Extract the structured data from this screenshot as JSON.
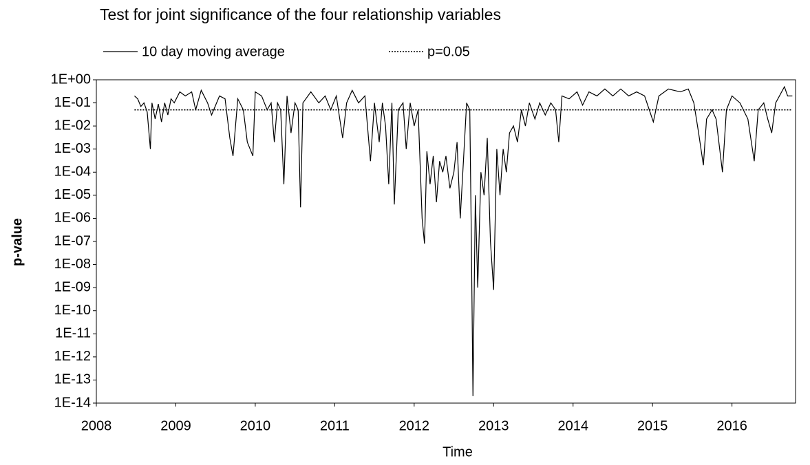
{
  "chart_data": {
    "type": "line",
    "title": "Test for joint significance of the four relationship variables",
    "x_label": "Time",
    "y_label": "p-value",
    "log_scale_y": true,
    "grid": false,
    "xlim": [
      2008,
      2016.8
    ],
    "xticks": [
      2008,
      2009,
      2010,
      2011,
      2012,
      2013,
      2014,
      2015,
      2016
    ],
    "ylim": [
      1e-14,
      1
    ],
    "yticks": [
      {
        "value": 1,
        "label": "1E+00"
      },
      {
        "value": 0.1,
        "label": "1E-01"
      },
      {
        "value": 0.01,
        "label": "1E-02"
      },
      {
        "value": 0.001,
        "label": "1E-03"
      },
      {
        "value": 0.0001,
        "label": "1E-04"
      },
      {
        "value": 1e-05,
        "label": "1E-05"
      },
      {
        "value": 1e-06,
        "label": "1E-06"
      },
      {
        "value": 1e-07,
        "label": "1E-07"
      },
      {
        "value": 1e-08,
        "label": "1E-08"
      },
      {
        "value": 1e-09,
        "label": "1E-09"
      },
      {
        "value": 1e-10,
        "label": "1E-10"
      },
      {
        "value": 1e-11,
        "label": "1E-11"
      },
      {
        "value": 1e-12,
        "label": "1E-12"
      },
      {
        "value": 1e-13,
        "label": "1E-13"
      },
      {
        "value": 1e-14,
        "label": "1E-14"
      }
    ],
    "series": [
      {
        "name": "10 day moving average",
        "color": "#000000",
        "style": "solid",
        "x": [
          2008.48,
          2008.52,
          2008.56,
          2008.6,
          2008.64,
          2008.68,
          2008.7,
          2008.74,
          2008.78,
          2008.82,
          2008.86,
          2008.9,
          2008.94,
          2008.98,
          2009.05,
          2009.12,
          2009.2,
          2009.25,
          2009.32,
          2009.4,
          2009.45,
          2009.55,
          2009.62,
          2009.68,
          2009.72,
          2009.78,
          2009.85,
          2009.9,
          2009.97,
          2010.0,
          2010.08,
          2010.15,
          2010.2,
          2010.24,
          2010.28,
          2010.32,
          2010.36,
          2010.4,
          2010.45,
          2010.5,
          2010.54,
          2010.57,
          2010.6,
          2010.7,
          2010.8,
          2010.88,
          2010.95,
          2011.02,
          2011.1,
          2011.15,
          2011.22,
          2011.3,
          2011.38,
          2011.45,
          2011.5,
          2011.56,
          2011.6,
          2011.64,
          2011.68,
          2011.72,
          2011.75,
          2011.8,
          2011.86,
          2011.9,
          2011.95,
          2012.0,
          2012.05,
          2012.1,
          2012.13,
          2012.16,
          2012.2,
          2012.24,
          2012.28,
          2012.32,
          2012.36,
          2012.4,
          2012.45,
          2012.5,
          2012.54,
          2012.58,
          2012.62,
          2012.66,
          2012.7,
          2012.72,
          2012.74,
          2012.77,
          2012.8,
          2012.84,
          2012.88,
          2012.92,
          2012.96,
          2013.0,
          2013.04,
          2013.08,
          2013.12,
          2013.16,
          2013.2,
          2013.25,
          2013.3,
          2013.35,
          2013.4,
          2013.45,
          2013.52,
          2013.58,
          2013.65,
          2013.72,
          2013.78,
          2013.82,
          2013.86,
          2013.95,
          2014.05,
          2014.12,
          2014.2,
          2014.3,
          2014.4,
          2014.5,
          2014.6,
          2014.7,
          2014.8,
          2014.9,
          2015.01,
          2015.08,
          2015.2,
          2015.35,
          2015.45,
          2015.52,
          2015.58,
          2015.64,
          2015.68,
          2015.75,
          2015.8,
          2015.88,
          2015.93,
          2016.0,
          2016.1,
          2016.2,
          2016.28,
          2016.33,
          2016.4,
          2016.45,
          2016.5,
          2016.55,
          2016.66,
          2016.7,
          2016.76
        ],
        "values": [
          0.2,
          0.15,
          0.07,
          0.1,
          0.04,
          0.001,
          0.1,
          0.02,
          0.09,
          0.015,
          0.1,
          0.03,
          0.15,
          0.1,
          0.3,
          0.2,
          0.3,
          0.05,
          0.35,
          0.1,
          0.03,
          0.2,
          0.15,
          0.003,
          0.0005,
          0.15,
          0.05,
          0.002,
          0.0005,
          0.3,
          0.2,
          0.05,
          0.1,
          0.002,
          0.1,
          0.05,
          3e-05,
          0.2,
          0.005,
          0.1,
          0.05,
          3e-06,
          0.1,
          0.3,
          0.1,
          0.2,
          0.05,
          0.2,
          0.003,
          0.1,
          0.35,
          0.1,
          0.2,
          0.0003,
          0.1,
          0.002,
          0.1,
          0.01,
          3e-05,
          0.1,
          4e-06,
          0.05,
          0.1,
          0.001,
          0.1,
          0.01,
          0.05,
          1e-06,
          8e-08,
          0.0008,
          3e-05,
          0.0005,
          5e-06,
          0.0003,
          0.0001,
          0.0005,
          2e-05,
          0.0001,
          0.002,
          1e-06,
          0.0003,
          0.1,
          0.05,
          1e-07,
          2e-14,
          1e-05,
          1e-09,
          0.0001,
          1e-05,
          0.003,
          1e-07,
          8e-10,
          0.001,
          1e-05,
          0.001,
          0.0001,
          0.005,
          0.01,
          0.002,
          0.05,
          0.01,
          0.1,
          0.02,
          0.1,
          0.03,
          0.1,
          0.05,
          0.002,
          0.2,
          0.15,
          0.3,
          0.08,
          0.3,
          0.2,
          0.4,
          0.2,
          0.4,
          0.2,
          0.3,
          0.2,
          0.015,
          0.2,
          0.4,
          0.3,
          0.4,
          0.1,
          0.005,
          0.0002,
          0.02,
          0.05,
          0.02,
          0.0001,
          0.05,
          0.2,
          0.1,
          0.02,
          0.0003,
          0.05,
          0.1,
          0.02,
          0.005,
          0.1,
          0.5,
          0.2,
          0.2
        ]
      },
      {
        "name": "p=0.05",
        "color": "#000000",
        "style": "dotted",
        "x": [
          2008.48,
          2016.76
        ],
        "values": [
          0.05,
          0.05
        ]
      }
    ]
  }
}
